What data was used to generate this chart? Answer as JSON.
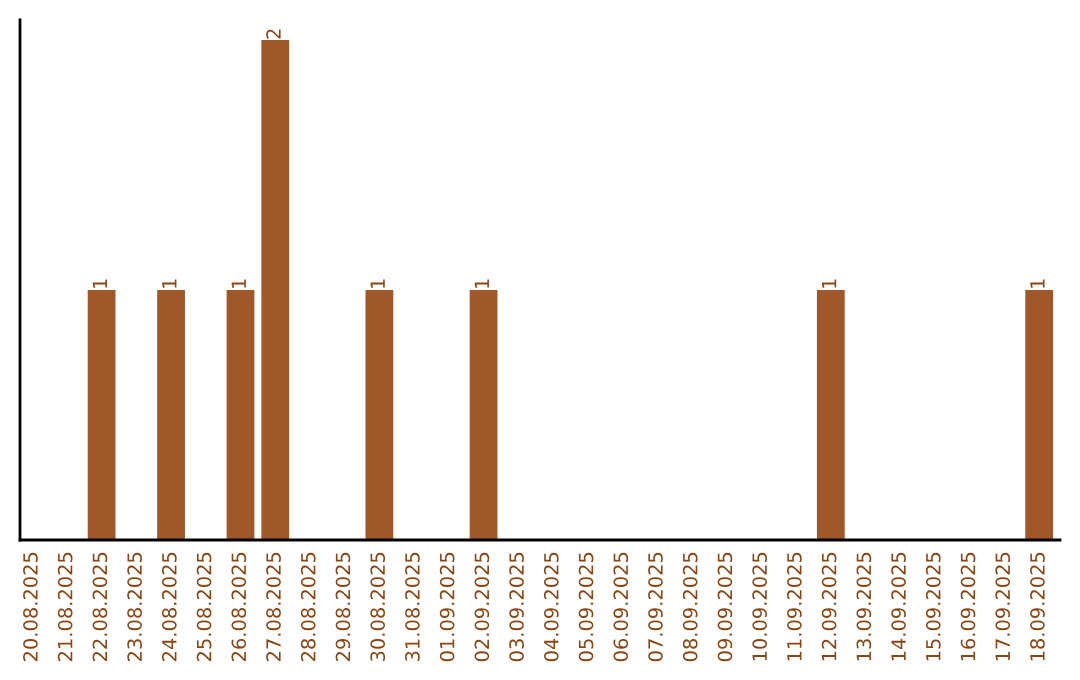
{
  "chart_data": {
    "type": "bar",
    "categories": [
      "20.08.2025",
      "21.08.2025",
      "22.08.2025",
      "23.08.2025",
      "24.08.2025",
      "25.08.2025",
      "26.08.2025",
      "27.08.2025",
      "28.08.2025",
      "29.08.2025",
      "30.08.2025",
      "31.08.2025",
      "01.09.2025",
      "02.09.2025",
      "03.09.2025",
      "04.09.2025",
      "05.09.2025",
      "06.09.2025",
      "07.09.2025",
      "08.09.2025",
      "09.09.2025",
      "10.09.2025",
      "11.09.2025",
      "12.09.2025",
      "13.09.2025",
      "14.09.2025",
      "15.09.2025",
      "16.09.2025",
      "17.09.2025",
      "18.09.2025"
    ],
    "values": [
      0,
      0,
      1,
      0,
      1,
      0,
      1,
      2,
      0,
      0,
      1,
      0,
      0,
      1,
      0,
      0,
      0,
      0,
      0,
      0,
      0,
      0,
      0,
      1,
      0,
      0,
      0,
      0,
      0,
      1
    ],
    "value_labels": [
      null,
      null,
      "1",
      null,
      "1",
      null,
      "1",
      "2",
      null,
      null,
      "1",
      null,
      null,
      "1",
      null,
      null,
      null,
      null,
      null,
      null,
      null,
      null,
      null,
      "1",
      null,
      null,
      null,
      null,
      null,
      "1"
    ],
    "color": "#a0582a",
    "ylim": [
      0,
      2.08
    ],
    "grid": false,
    "legend": false
  }
}
